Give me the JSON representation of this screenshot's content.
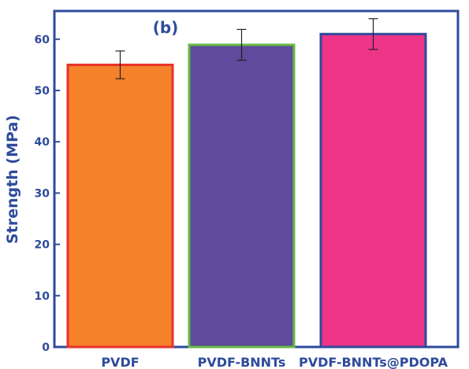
{
  "chart_data": {
    "type": "bar",
    "panel_label": "(b)",
    "ylabel": "Strength (MPa)",
    "xlabel": "",
    "categories": [
      "PVDF",
      "PVDF-BNNTs",
      "PVDF-BNNTs@PDOPA"
    ],
    "values": [
      55.0,
      58.9,
      61.0
    ],
    "errors": [
      2.7,
      3.0,
      3.0
    ],
    "ylim": [
      0,
      66
    ],
    "yticks": [
      0,
      10,
      20,
      30,
      40,
      50,
      60
    ],
    "grid": false,
    "legend": "none",
    "colors": {
      "fills": [
        "#f5812b",
        "#5e4b9c",
        "#ee3588"
      ],
      "edges": [
        "#e8312a",
        "#66b845",
        "#2e4b9b"
      ],
      "axis": "#2e4b9b",
      "text": "#2e4b9b"
    }
  }
}
